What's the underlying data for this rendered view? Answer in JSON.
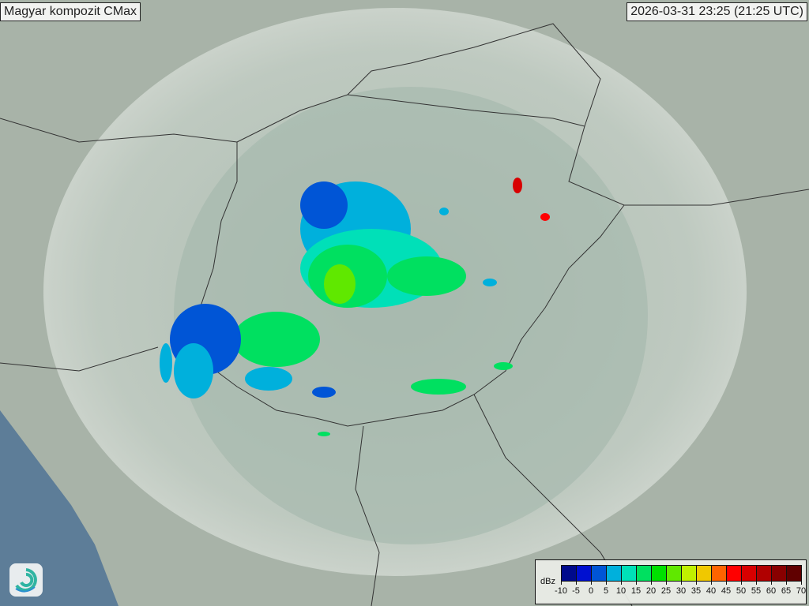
{
  "title": "Magyar kompozit  CMax",
  "timestamp": "2026-03-31 23:25 (21:25 UTC)",
  "legend": {
    "unit": "dBz",
    "ticks": [
      "-10",
      "-5",
      "0",
      "5",
      "10",
      "15",
      "20",
      "25",
      "30",
      "35",
      "40",
      "45",
      "50",
      "55",
      "60",
      "65",
      "70"
    ],
    "colors": [
      "#000a8c",
      "#0010d0",
      "#0055d6",
      "#00b0dc",
      "#00e0b8",
      "#00e060",
      "#00e000",
      "#60e800",
      "#c0f000",
      "#f0c800",
      "#ff6400",
      "#ff0000",
      "#d80000",
      "#b00000",
      "#880000",
      "#600000"
    ]
  },
  "logo": "met-service-swirl-logo"
}
